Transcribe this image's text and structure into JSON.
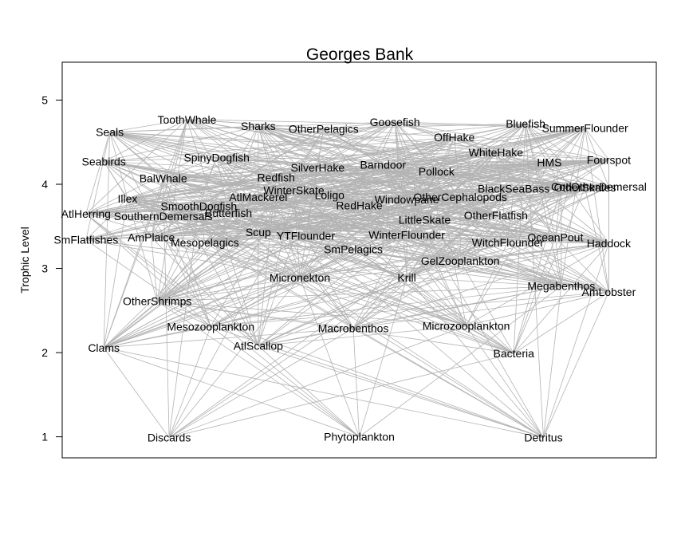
{
  "chart_data": {
    "type": "scatter",
    "title": "Georges Bank",
    "ylabel": "Trophic Level",
    "xlabel": "",
    "ylim": [
      0.75,
      5.45
    ],
    "yticks": [
      1,
      2,
      3,
      4,
      5
    ],
    "x_axis": "none",
    "edge_color": "#b3b3b3",
    "nodes": [
      {
        "name": "Seals",
        "x": 0.08,
        "y": 4.62
      },
      {
        "name": "ToothWhale",
        "x": 0.21,
        "y": 4.77
      },
      {
        "name": "Sharks",
        "x": 0.33,
        "y": 4.69
      },
      {
        "name": "OtherPelagics",
        "x": 0.44,
        "y": 4.66
      },
      {
        "name": "Goosefish",
        "x": 0.56,
        "y": 4.74
      },
      {
        "name": "Bluefish",
        "x": 0.78,
        "y": 4.72
      },
      {
        "name": "SummerFlounder",
        "x": 0.88,
        "y": 4.67
      },
      {
        "name": "OffHake",
        "x": 0.66,
        "y": 4.56
      },
      {
        "name": "WhiteHake",
        "x": 0.73,
        "y": 4.38
      },
      {
        "name": "HMS",
        "x": 0.82,
        "y": 4.26
      },
      {
        "name": "Fourspot",
        "x": 0.92,
        "y": 4.29
      },
      {
        "name": "Seabirds",
        "x": 0.07,
        "y": 4.27
      },
      {
        "name": "SpinyDogfish",
        "x": 0.26,
        "y": 4.32
      },
      {
        "name": "SilverHake",
        "x": 0.43,
        "y": 4.2
      },
      {
        "name": "Barndoor",
        "x": 0.54,
        "y": 4.23
      },
      {
        "name": "Pollock",
        "x": 0.63,
        "y": 4.15
      },
      {
        "name": "BalWhale",
        "x": 0.17,
        "y": 4.07
      },
      {
        "name": "Redfish",
        "x": 0.36,
        "y": 4.08
      },
      {
        "name": "WinterSkate",
        "x": 0.39,
        "y": 3.93
      },
      {
        "name": "Loligo",
        "x": 0.45,
        "y": 3.87
      },
      {
        "name": "BlackSeaBass",
        "x": 0.76,
        "y": 3.95
      },
      {
        "name": "Cod",
        "x": 0.84,
        "y": 3.97
      },
      {
        "name": "OtherSkates",
        "x": 0.88,
        "y": 3.96
      },
      {
        "name": "OtherDemersal",
        "x": 0.92,
        "y": 3.97
      },
      {
        "name": "Illex",
        "x": 0.11,
        "y": 3.83
      },
      {
        "name": "AtlMackerel",
        "x": 0.33,
        "y": 3.85
      },
      {
        "name": "Windowpane",
        "x": 0.58,
        "y": 3.82
      },
      {
        "name": "OtherCephalopods",
        "x": 0.67,
        "y": 3.85
      },
      {
        "name": "SmoothDogfish",
        "x": 0.23,
        "y": 3.74
      },
      {
        "name": "Butterfish",
        "x": 0.28,
        "y": 3.66
      },
      {
        "name": "RedHake",
        "x": 0.5,
        "y": 3.75
      },
      {
        "name": "AtlHerring",
        "x": 0.04,
        "y": 3.65
      },
      {
        "name": "SouthernDemersals",
        "x": 0.17,
        "y": 3.62
      },
      {
        "name": "LittleSkate",
        "x": 0.61,
        "y": 3.58
      },
      {
        "name": "OtherFlatfish",
        "x": 0.73,
        "y": 3.63
      },
      {
        "name": "Scup",
        "x": 0.33,
        "y": 3.43
      },
      {
        "name": "YTFlounder",
        "x": 0.41,
        "y": 3.39
      },
      {
        "name": "WinterFlounder",
        "x": 0.58,
        "y": 3.4
      },
      {
        "name": "OceanPout",
        "x": 0.83,
        "y": 3.37
      },
      {
        "name": "SmFlatfishes",
        "x": 0.04,
        "y": 3.34
      },
      {
        "name": "AmPlaice",
        "x": 0.15,
        "y": 3.37
      },
      {
        "name": "Mesopelagics",
        "x": 0.24,
        "y": 3.31
      },
      {
        "name": "WitchFlounder",
        "x": 0.75,
        "y": 3.31
      },
      {
        "name": "Haddock",
        "x": 0.92,
        "y": 3.3
      },
      {
        "name": "SmPelagics",
        "x": 0.49,
        "y": 3.23
      },
      {
        "name": "GelZooplankton",
        "x": 0.67,
        "y": 3.09
      },
      {
        "name": "Micronekton",
        "x": 0.4,
        "y": 2.89
      },
      {
        "name": "Krill",
        "x": 0.58,
        "y": 2.89
      },
      {
        "name": "Megabenthos",
        "x": 0.84,
        "y": 2.79
      },
      {
        "name": "AmLobster",
        "x": 0.92,
        "y": 2.72
      },
      {
        "name": "OtherShrimps",
        "x": 0.16,
        "y": 2.61
      },
      {
        "name": "Mesozooplankton",
        "x": 0.25,
        "y": 2.31
      },
      {
        "name": "Macrobenthos",
        "x": 0.49,
        "y": 2.29
      },
      {
        "name": "Microzooplankton",
        "x": 0.68,
        "y": 2.32
      },
      {
        "name": "Clams",
        "x": 0.07,
        "y": 2.06
      },
      {
        "name": "AtlScallop",
        "x": 0.33,
        "y": 2.08
      },
      {
        "name": "Bacteria",
        "x": 0.76,
        "y": 1.99
      },
      {
        "name": "Discards",
        "x": 0.18,
        "y": 0.99
      },
      {
        "name": "Phytoplankton",
        "x": 0.5,
        "y": 1.0
      },
      {
        "name": "Detritus",
        "x": 0.81,
        "y": 0.99
      }
    ]
  }
}
